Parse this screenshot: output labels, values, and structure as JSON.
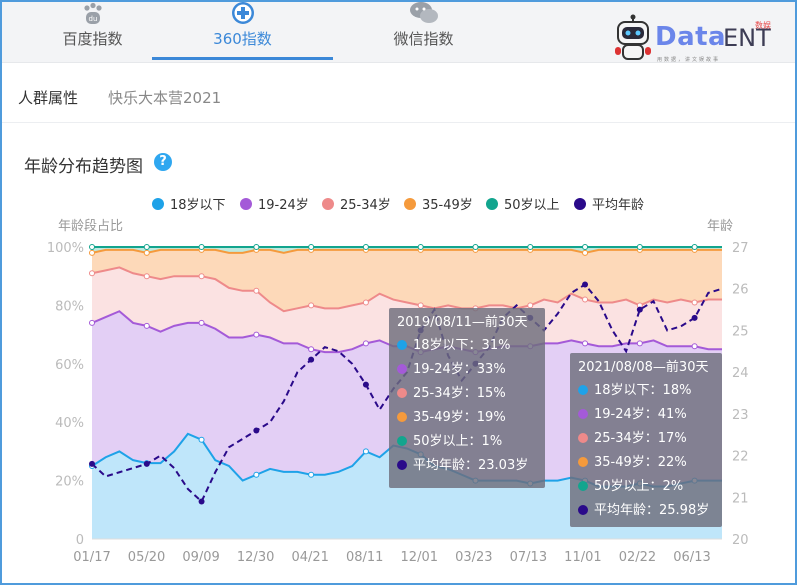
{
  "tabs": [
    {
      "label": "百度指数",
      "icon": "paw-icon",
      "active": false
    },
    {
      "label": "360指数",
      "icon": "plus-circle-icon",
      "active": true
    },
    {
      "label": "微信指数",
      "icon": "chat-bubble-icon",
      "active": false
    }
  ],
  "logo": {
    "brand": "Data",
    "suffix": "ENT",
    "badge": "数娱",
    "sub": "用数据，讲文娱故事"
  },
  "subnav": {
    "label": "人群属性",
    "keyword": "快乐大本营2021"
  },
  "chart_title": "年龄分布趋势图",
  "help_icon": "?",
  "colors": {
    "18岁以下": "#1ea2e8",
    "19-24岁": "#a45ad8",
    "25-34岁": "#ee8a8a",
    "35-49岁": "#f59a3c",
    "50岁以上": "#12a58e",
    "平均年龄": "#2a0a8a"
  },
  "chart_data": {
    "type": "area",
    "stacked_percent": true,
    "xlabel": "",
    "ylabel_left": "年龄段占比",
    "ylabel_right": "年龄",
    "x_ticks": [
      "01/17",
      "05/20",
      "09/09",
      "12/30",
      "04/21",
      "08/11",
      "12/01",
      "03/23",
      "07/13",
      "11/01",
      "02/22",
      "06/13"
    ],
    "ylim_left": [
      0,
      100
    ],
    "yticks_left": [
      "0",
      "20%",
      "40%",
      "60%",
      "80%",
      "100%"
    ],
    "ylim_right": [
      20,
      27
    ],
    "yticks_right": [
      "20",
      "21",
      "22",
      "23",
      "24",
      "25",
      "26",
      "27"
    ],
    "legend_position": "top",
    "series": [
      {
        "name": "18岁以下",
        "values": [
          25,
          28,
          30,
          27,
          26,
          26,
          30,
          36,
          34,
          27,
          25,
          20,
          22,
          24,
          23,
          23,
          22,
          22,
          23,
          25,
          30,
          28,
          32,
          31,
          29,
          25,
          24,
          22,
          20,
          20,
          20,
          20,
          19,
          20,
          20,
          21,
          20,
          18,
          18,
          18,
          19,
          18,
          18,
          19,
          20,
          20,
          20
        ]
      },
      {
        "name": "19-24岁",
        "values": [
          49,
          48,
          48,
          47,
          47,
          45,
          43,
          38,
          40,
          45,
          44,
          49,
          48,
          45,
          44,
          44,
          43,
          42,
          41,
          40,
          37,
          40,
          34,
          35,
          35,
          40,
          42,
          43,
          44,
          45,
          46,
          46,
          47,
          47,
          47,
          47,
          47,
          48,
          48,
          49,
          48,
          50,
          48,
          47,
          46,
          45,
          45
        ]
      },
      {
        "name": "25-34岁",
        "values": [
          17,
          16,
          15,
          17,
          17,
          18,
          17,
          16,
          16,
          17,
          17,
          16,
          15,
          12,
          11,
          12,
          15,
          15,
          15,
          15,
          14,
          16,
          16,
          15,
          16,
          14,
          14,
          14,
          15,
          15,
          14,
          13,
          14,
          15,
          14,
          16,
          15,
          15,
          15,
          15,
          13,
          14,
          15,
          16,
          15,
          17,
          17
        ]
      },
      {
        "name": "35-49岁",
        "values": [
          7,
          7,
          6,
          8,
          8,
          10,
          9,
          9,
          9,
          10,
          12,
          13,
          14,
          18,
          20,
          20,
          19,
          20,
          20,
          19,
          18,
          15,
          17,
          18,
          19,
          20,
          19,
          20,
          20,
          19,
          19,
          20,
          19,
          17,
          18,
          15,
          16,
          18,
          18,
          17,
          19,
          17,
          18,
          17,
          18,
          17,
          17
        ]
      },
      {
        "name": "50岁以上",
        "values": [
          2,
          1,
          1,
          1,
          2,
          1,
          1,
          1,
          1,
          1,
          2,
          2,
          1,
          1,
          2,
          1,
          1,
          1,
          1,
          1,
          1,
          1,
          1,
          1,
          1,
          1,
          1,
          1,
          1,
          1,
          1,
          1,
          1,
          1,
          1,
          1,
          2,
          1,
          1,
          1,
          1,
          1,
          1,
          1,
          1,
          1,
          1
        ]
      },
      {
        "name": "平均年龄",
        "values": [
          21.8,
          21.5,
          21.6,
          21.7,
          21.8,
          22.0,
          21.7,
          21.2,
          20.9,
          21.6,
          22.2,
          22.4,
          22.6,
          22.8,
          23.3,
          24.0,
          24.3,
          24.6,
          24.5,
          24.2,
          23.7,
          23.1,
          23.6,
          24.0,
          25.0,
          25.5,
          24.4,
          23.8,
          24.2,
          24.6,
          25.3,
          25.6,
          25.3,
          25.0,
          25.4,
          25.9,
          26.1,
          25.7,
          25.0,
          24.5,
          25.5,
          25.7,
          25.0,
          25.1,
          25.3,
          25.9,
          26.0
        ]
      }
    ]
  },
  "tooltips": [
    {
      "header": "2019/08/11—前30天",
      "rows": [
        {
          "series": "18岁以下",
          "text": "18岁以下：31%"
        },
        {
          "series": "19-24岁",
          "text": "19-24岁：33%"
        },
        {
          "series": "25-34岁",
          "text": "25-34岁：15%"
        },
        {
          "series": "35-49岁",
          "text": "35-49岁：19%"
        },
        {
          "series": "50岁以上",
          "text": "50岁以上：1%"
        },
        {
          "series": "平均年龄",
          "text": "平均年龄：23.03岁"
        }
      ]
    },
    {
      "header": "2021/08/08—前30天",
      "rows": [
        {
          "series": "18岁以下",
          "text": "18岁以下：18%"
        },
        {
          "series": "19-24岁",
          "text": "19-24岁：41%"
        },
        {
          "series": "25-34岁",
          "text": "25-34岁：17%"
        },
        {
          "series": "35-49岁",
          "text": "35-49岁：22%"
        },
        {
          "series": "50岁以上",
          "text": "50岁以上：2%"
        },
        {
          "series": "平均年龄",
          "text": "平均年龄：25.98岁"
        }
      ]
    }
  ]
}
